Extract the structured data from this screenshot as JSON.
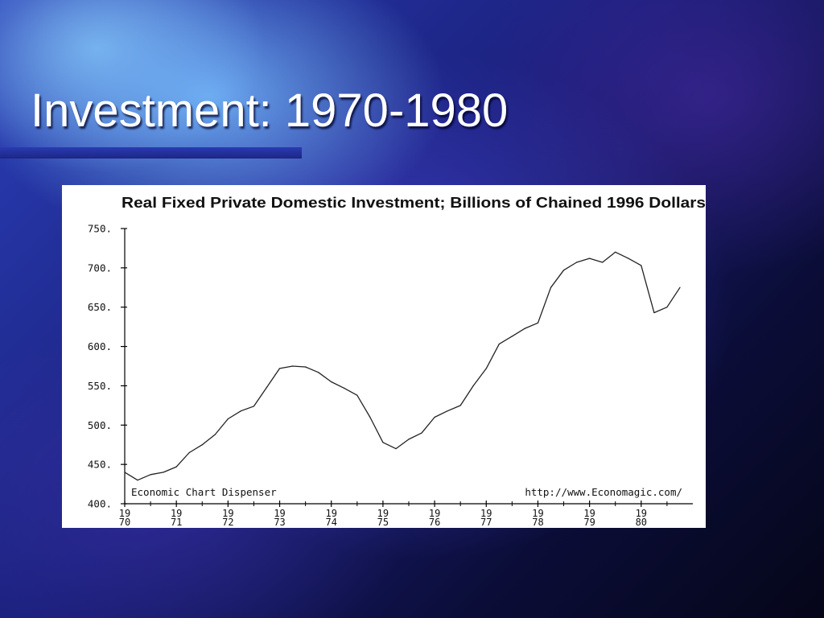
{
  "slide": {
    "title": "Investment: 1970-1980"
  },
  "chart_data": {
    "type": "line",
    "title": "Real Fixed Private Domestic Investment; Billions of Chained 1996 Dollars",
    "xlabel": "",
    "ylabel": "",
    "ylim": [
      400,
      750
    ],
    "y_ticks": [
      400,
      450,
      500,
      550,
      600,
      650,
      700,
      750
    ],
    "y_tick_labels": [
      "400.",
      "450.",
      "500.",
      "550.",
      "600.",
      "650.",
      "700.",
      "750."
    ],
    "x_ticks": [
      1970,
      1971,
      1972,
      1973,
      1974,
      1975,
      1976,
      1977,
      1978,
      1979,
      1980
    ],
    "x_tick_labels": [
      [
        "19",
        "70"
      ],
      [
        "19",
        "71"
      ],
      [
        "19",
        "72"
      ],
      [
        "19",
        "73"
      ],
      [
        "19",
        "74"
      ],
      [
        "19",
        "75"
      ],
      [
        "19",
        "76"
      ],
      [
        "19",
        "77"
      ],
      [
        "19",
        "78"
      ],
      [
        "19",
        "79"
      ],
      [
        "19",
        "80"
      ]
    ],
    "xlim": [
      1970,
      1981
    ],
    "grid": false,
    "source_left": "Economic Chart Dispenser",
    "source_right": "http://www.Economagic.com/",
    "series": [
      {
        "x": [
          1970.0,
          1970.25,
          1970.5,
          1970.75,
          1971.0,
          1971.25,
          1971.5,
          1971.75,
          1972.0,
          1972.25,
          1972.5,
          1972.75,
          1973.0,
          1973.25,
          1973.5,
          1973.75,
          1974.0,
          1974.25,
          1974.5,
          1974.75,
          1975.0,
          1975.25,
          1975.5,
          1975.75,
          1976.0,
          1976.25,
          1976.5,
          1976.75,
          1977.0,
          1977.25,
          1977.5,
          1977.75,
          1978.0,
          1978.25,
          1978.5,
          1978.75,
          1979.0,
          1979.25,
          1979.5,
          1979.75,
          1980.0,
          1980.25,
          1980.5,
          1980.75
        ],
        "values": [
          440,
          430,
          437,
          440,
          447,
          465,
          475,
          488,
          508,
          518,
          524,
          548,
          572,
          575,
          574,
          567,
          555,
          547,
          538,
          510,
          478,
          470,
          482,
          490,
          510,
          518,
          525,
          550,
          572,
          603,
          613,
          623,
          630,
          675,
          697,
          707,
          712,
          707,
          720,
          712,
          703,
          643,
          650,
          675
        ]
      }
    ]
  }
}
